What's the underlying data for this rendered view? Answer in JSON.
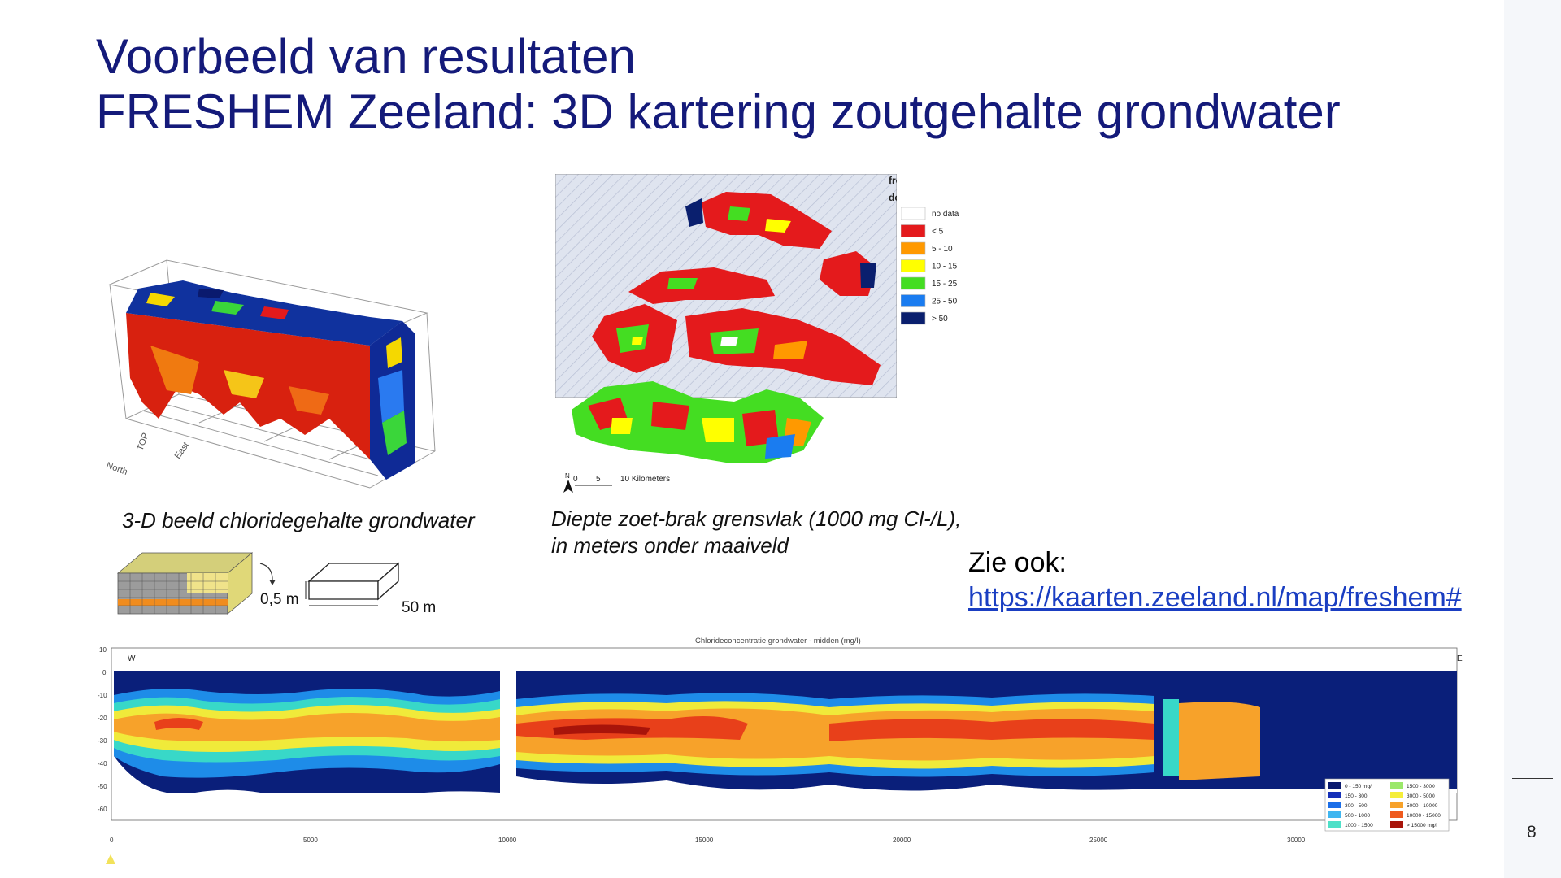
{
  "slide": {
    "title_line1": "Voorbeeld van resultaten",
    "title_line2": "FRESHEM Zeeland: 3D kartering zoutgehalte grondwater",
    "page_number": "8"
  },
  "figures": {
    "block3d": {
      "caption": "3-D beeld chloridegehalte grondwater",
      "axis_label_top": "TOP",
      "axis_label_east": "East",
      "axis_label_north": "North",
      "voxel_depth_label": "0,5 m",
      "voxel_width_label": "50 m"
    },
    "map": {
      "caption_line1": "Diepte zoet-brak grensvlak (1000 mg Cl-/L),",
      "caption_line2": "in meters onder maaiveld",
      "legend_title_line1": "fresh-brackish boundary",
      "legend_title_line2": "depth in m-surface",
      "legend_items": [
        {
          "label": "no data",
          "color": "#ffffff"
        },
        {
          "label": "< 5",
          "color": "#e41a1c"
        },
        {
          "label": "5 - 10",
          "color": "#ff9900"
        },
        {
          "label": "10 - 15",
          "color": "#ffff00"
        },
        {
          "label": "15 - 25",
          "color": "#44dd22"
        },
        {
          "label": "25 - 50",
          "color": "#1a7cf0"
        },
        {
          "label": "> 50",
          "color": "#0a1f6e"
        }
      ],
      "scale_labels": [
        "0",
        "5",
        "10 Kilometers"
      ],
      "north_label": "N"
    },
    "see_also": {
      "label": "Zie ook:",
      "link": "https://kaarten.zeeland.nl/map/freshem#"
    },
    "section": {
      "title": "Chlorideconcentratie grondwater - midden (mg/l)",
      "west_label": "W",
      "east_label": "E",
      "y_ticks": [
        "10",
        "0",
        "-10",
        "-20",
        "-30",
        "-40",
        "-50",
        "-60"
      ],
      "x_ticks": [
        "0",
        "5000",
        "10000",
        "15000",
        "20000",
        "25000",
        "30000"
      ],
      "legend_items": [
        {
          "label": "0 - 150 mg/l",
          "color": "#0a1a6e"
        },
        {
          "label": "1500 - 3000",
          "color": "#9be86a"
        },
        {
          "label": "150 - 300",
          "color": "#1530b8"
        },
        {
          "label": "3000 - 5000",
          "color": "#f5ee3a"
        },
        {
          "label": "300 - 500",
          "color": "#1b6ee8"
        },
        {
          "label": "5000 - 10000",
          "color": "#f7a22a"
        },
        {
          "label": "500 - 1000",
          "color": "#3fb6f0"
        },
        {
          "label": "10000 - 15000",
          "color": "#ef5a1e"
        },
        {
          "label": "1000 - 1500",
          "color": "#4ee0c8"
        },
        {
          "label": "> 15000 mg/l",
          "color": "#a8140a"
        }
      ]
    }
  }
}
